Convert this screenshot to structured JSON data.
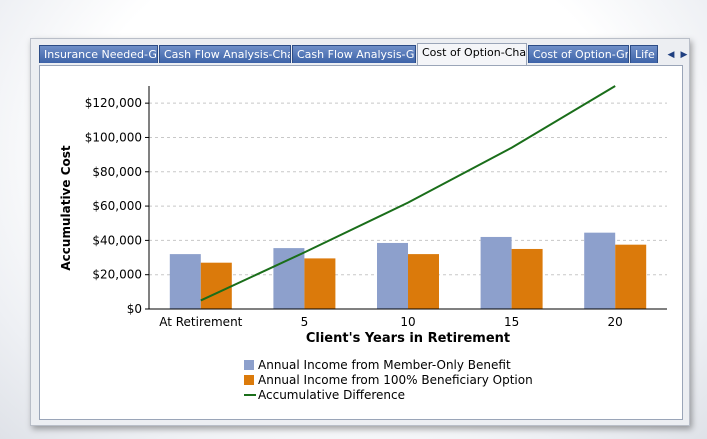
{
  "tabs": [
    {
      "label": "Insurance Needed-Grid"
    },
    {
      "label": "Cash Flow Analysis-Chart"
    },
    {
      "label": "Cash Flow Analysis-Grid"
    },
    {
      "label": "Cost of Option-Chart"
    },
    {
      "label": "Cost of Option-Grid"
    },
    {
      "label": "Life"
    }
  ],
  "active_tab": 3,
  "nav": {
    "prev_icon": "triangle-left",
    "next_icon": "triangle-right"
  },
  "colors": {
    "member_only": "#8da0cc",
    "beneficiary": "#db7a0b",
    "difference": "#1a6e1a",
    "grid": "#c8c8c8",
    "tab_blue": "#3d63a8"
  },
  "chart_data": {
    "type": "bar",
    "title": "",
    "xlabel": "Client's Years in Retirement",
    "ylabel": "Accumulative Cost",
    "categories": [
      "At Retirement",
      "5",
      "10",
      "15",
      "20"
    ],
    "ylim": [
      0,
      130000
    ],
    "yticks": [
      0,
      20000,
      40000,
      60000,
      80000,
      100000,
      120000
    ],
    "ytick_labels": [
      "$0",
      "$20,000",
      "$40,000",
      "$60,000",
      "$80,000",
      "$100,000",
      "$120,000"
    ],
    "grid": true,
    "legend_position": "bottom",
    "series": [
      {
        "name": "Annual Income from Member-Only Benefit",
        "kind": "bar",
        "values": [
          32000,
          35500,
          38500,
          42000,
          44500
        ]
      },
      {
        "name": "Annual Income from 100% Beneficiary Option",
        "kind": "bar",
        "values": [
          27000,
          29500,
          32000,
          35000,
          37500
        ]
      },
      {
        "name": "Accumulative Difference",
        "kind": "line",
        "values": [
          5000,
          33000,
          62000,
          94000,
          130000
        ]
      }
    ]
  }
}
